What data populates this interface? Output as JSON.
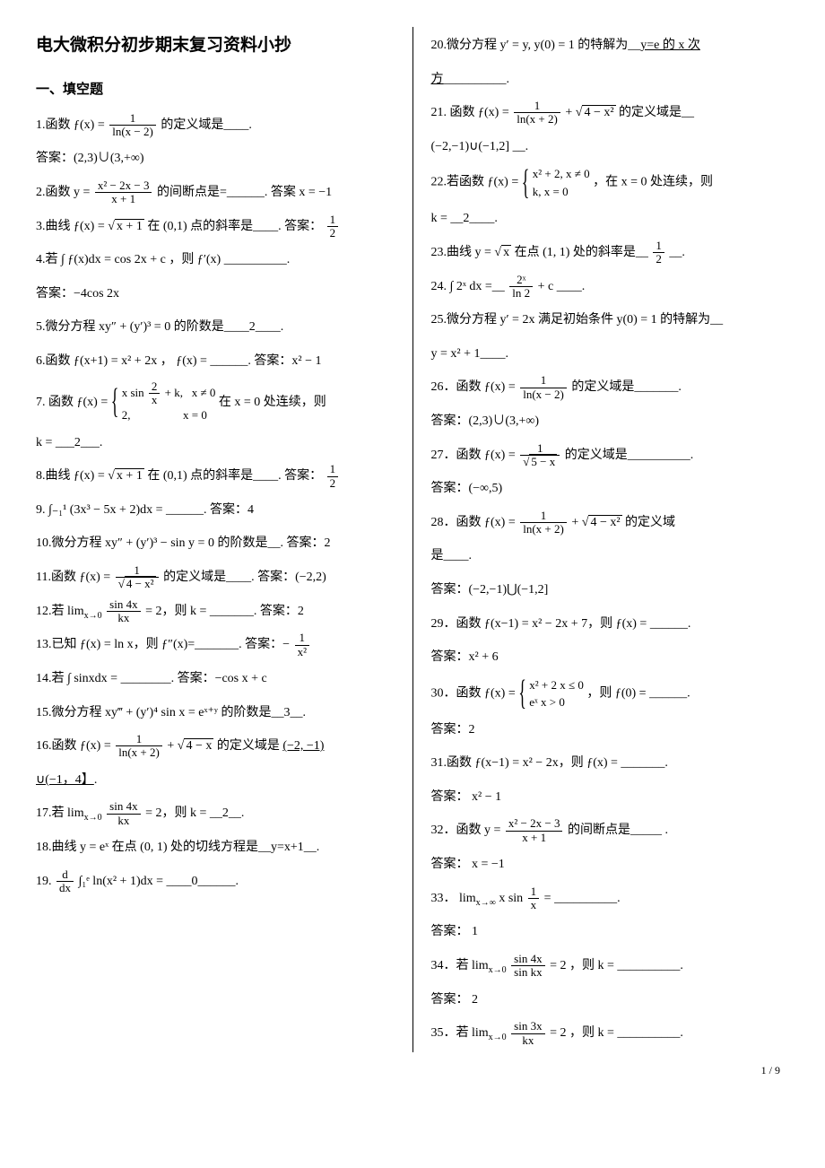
{
  "doc_title": "电大微积分初步期末复习资料小抄",
  "section1": "一、填空题",
  "page_num": "1 / 9",
  "left": {
    "q1": "1.函数 ƒ(x) = ",
    "q1_end": " 的定义域是____.",
    "a1": "答案：(2,3)∪(3,+∞)",
    "q2": "2.函数 y = ",
    "q2_end": " 的间断点是=______.  答案   x = −1",
    "q3a": "3.曲线 ƒ(x) = ",
    "q3b": " 在 (0,1) 点的斜率是____.  答案：",
    "q4": "4.若 ∫ ƒ(x)dx = cos 2x + c ，则 ƒ′(x) __________.",
    "a4": "答案：−4cos 2x",
    "q5": "5.微分方程 xy″ + (y′)³ = 0 的阶数是____2____.",
    "q6": "6.函数 ƒ(x+1) = x² + 2x ， ƒ(x) = ______.  答案：x² − 1",
    "q7a": "7.  函数 ƒ(x) = ",
    "q7b": "  在 x = 0 处连续，则",
    "q7_brace1": "x sin(2/x) + k,   x ≠ 0",
    "q7_brace2": "2,                      x = 0",
    "q7c": "k = ___2___.",
    "q8a": "8.曲线 ƒ(x) = ",
    "q8b": " 在 (0,1) 点的斜率是____.  答案：",
    "q9": "9. ∫₋₁¹ (3x³ − 5x + 2)dx = ______.  答案：4",
    "q10": "10.微分方程 xy″ + (y′)³ − sin y = 0 的阶数是__.  答案：2",
    "q11a": "11.函数 ƒ(x) = ",
    "q11b": " 的定义域是____.  答案：(−2,2)",
    "q12a": "12.若 ",
    "q12b": " = 2，则 k = _______.   答案：2",
    "q13a": "13.已知 ƒ(x) = ln x，则 ƒ″(x)=_______.  答案：−",
    "q14": "14.若 ∫ sinxdx = ________.  答案：−cos x + c",
    "q15": "15.微分方程 xy‴ + (y′)⁴ sin x = eˣ⁺ʸ 的阶数是__3__.",
    "q16a": "16.函数 ƒ(x) = ",
    "q16b": " 的定义域是 ",
    "q16c": "(−2, −1)",
    "q16d": "∪(−1，4】",
    "q17a": "17.若 ",
    "q17b": " = 2，则 k = __2__.",
    "q18": "18.曲线 y = eˣ 在点 (0, 1) 处的切线方程是__y=x+1__.",
    "q19a": "19. ",
    "q19b": "∫₁ᵉ ln(x² + 1)dx = ____0______."
  },
  "right": {
    "q20a": "20.微分方程 y′ = y, y(0) = 1 的特解为__",
    "q20b": "y=e 的 x 次",
    "q20c": "方",
    "q20d": "__________.",
    "q21a": "21. 函数 ƒ(x) = ",
    "q21b": " 的定义域是__",
    "q21c": " (−2,−1)∪(−1,2]   __.",
    "q22a": "22.若函数 ƒ(x) = ",
    "q22_brace1": "x² + 2,    x ≠ 0",
    "q22_brace2": "k,          x = 0",
    "q22b": "，在 x = 0 处连续，则",
    "q22c": "k = __2____.",
    "q23a": "23.曲线 y = ",
    "q23b": " 在点 (1, 1) 处的斜率是__",
    "q23c": "__.",
    "q24a": "24. ∫ 2ˣ dx =__",
    "q24b": "+ c ____.",
    "q25": "25.微分方程 y′ = 2x 满足初始条件 y(0) = 1 的特解为__",
    "q25b": " y = x² + 1____.",
    "q26a": "26．函数 ",
    "q26b": " 的定义域是_______.",
    "a26": "答案：(2,3)∪(3,+∞)",
    "q27a": "27．函数 ",
    "q27b": " 的定义域是__________.",
    "a27": "答案：(−∞,5)",
    "q28a": "28．函数 ",
    "q28b": "         的定义域",
    "q28c": "是____.",
    "a28": "答案：(−2,−1)⋃(−1,2]",
    "q29": "29．函数 ƒ(x−1) = x² − 2x + 7，则 ƒ(x) = ______.",
    "a29": "答案：x² + 6",
    "q30a": "30．函数 ",
    "q30_brace1": "x² + 2    x ≤ 0",
    "q30_brace2": "eˣ         x > 0",
    "q30b": "，则 ƒ(0) = ______.",
    "a30": "答案：2",
    "q31": "31.函数 ƒ(x−1) = x² − 2x，则 ƒ(x) = _______.",
    "a31": "答案： x² − 1",
    "q32a": "32．函数 ",
    "q32b": "     的间断点是_____   .",
    "a32": "答案： x = −1",
    "q33a": "33．",
    "q33b": "__________.",
    "a33": "答案： 1",
    "q34a": "34．若 ",
    "q34b": "，则 k = __________.",
    "a34": "答案： 2",
    "q35a": "35．若 ",
    "q35b": "，则 k = __________."
  }
}
